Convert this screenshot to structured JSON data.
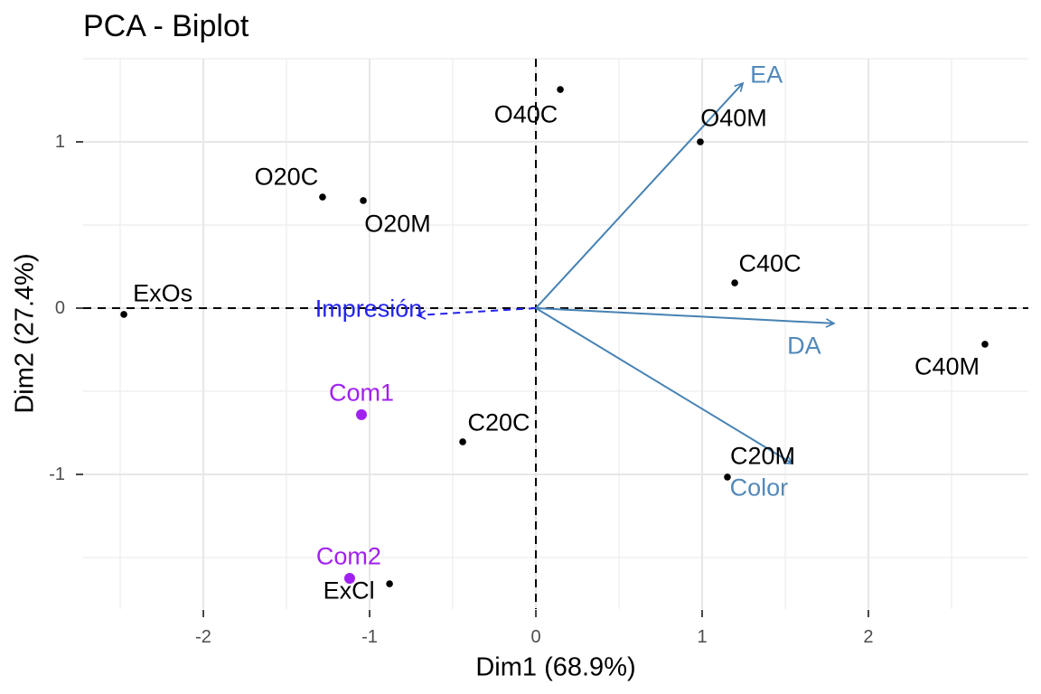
{
  "chart_data": {
    "type": "scatter",
    "subtype": "pca-biplot",
    "title": "PCA - Biplot",
    "xlabel": "Dim1 (68.9%)",
    "ylabel": "Dim2 (27.4%)",
    "xlim": [
      -2.723,
      2.962
    ],
    "ylim": [
      -1.81,
      1.5
    ],
    "grid": true,
    "zero_lines": "dashed",
    "legend_position": "none",
    "x_ticks": {
      "values": [
        -2,
        -1,
        0,
        1,
        2
      ],
      "labels": [
        "-2",
        "-1",
        "0",
        "1",
        "2"
      ]
    },
    "y_ticks": {
      "values": [
        -1,
        0,
        1
      ],
      "labels": [
        "-1",
        "0",
        "1"
      ]
    },
    "x_minor": [
      -2.5,
      -1.5,
      -0.5,
      0.5,
      1.5,
      2.5
    ],
    "y_minor": [
      -1.5,
      -0.5,
      0.5,
      1.5
    ],
    "individuals": [
      {
        "label": "O40C",
        "x": 0.147,
        "y": 1.315,
        "label_offset": [
          -38,
          28
        ]
      },
      {
        "label": "O40M",
        "x": 0.989,
        "y": 1.0,
        "label_offset": [
          37,
          -26
        ]
      },
      {
        "label": "O20C",
        "x": -1.283,
        "y": 0.668,
        "label_offset": [
          -40,
          -22
        ]
      },
      {
        "label": "O20M",
        "x": -1.038,
        "y": 0.647,
        "label_offset": [
          38,
          26
        ]
      },
      {
        "label": "ExOs",
        "x": -2.478,
        "y": -0.038,
        "label_offset": [
          43,
          -23
        ]
      },
      {
        "label": "C40C",
        "x": 1.196,
        "y": 0.152,
        "label_offset": [
          39,
          -21
        ]
      },
      {
        "label": "C40M",
        "x": 2.701,
        "y": -0.217,
        "label_offset": [
          -42,
          25
        ]
      },
      {
        "label": "C20C",
        "x": -0.44,
        "y": -0.804,
        "label_offset": [
          40,
          -21
        ]
      },
      {
        "label": "C20M",
        "x": 1.152,
        "y": -1.016,
        "label_offset": [
          39,
          -23
        ]
      },
      {
        "label": "ExCl",
        "x": -0.88,
        "y": -1.658,
        "label_offset": [
          -45,
          8
        ]
      }
    ],
    "sup_individuals": [
      {
        "label": "Com1",
        "x": -1.049,
        "y": -0.641,
        "label_offset": [
          0,
          -24
        ]
      },
      {
        "label": "Com2",
        "x": -1.12,
        "y": -1.625,
        "label_offset": [
          -1,
          -24
        ]
      }
    ],
    "variables": [
      {
        "label": "EA",
        "x": 1.245,
        "y": 1.353,
        "label_offset": [
          26,
          -9
        ]
      },
      {
        "label": "DA",
        "x": 1.793,
        "y": -0.092,
        "label_offset": [
          -33,
          25
        ]
      },
      {
        "label": "Color",
        "x": 1.543,
        "y": -0.935,
        "label_offset": [
          -37,
          27
        ]
      }
    ],
    "sup_variables": [
      {
        "label": "Impresión",
        "x": -0.712,
        "y": -0.043,
        "label_offset": [
          -54,
          -7
        ]
      }
    ],
    "colors": {
      "individuals": "#000000",
      "sup_individuals": "#A020F0",
      "variables": "#4682B4",
      "variables_text": "#5389B9",
      "sup_variables": "#2222EE",
      "grid_major": "#E7E7E7",
      "grid_minor": "#EFEFEF",
      "axis_text": "#4D4D4D",
      "tick_mark": "#333333",
      "zero_line": "#000000",
      "background": "#FFFFFF"
    }
  }
}
